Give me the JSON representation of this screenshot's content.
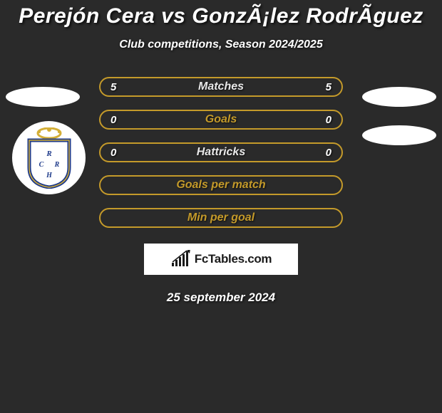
{
  "title": "Perejón Cera vs GonzÃ¡lez RodrÃ­guez",
  "subtitle": "Club competitions, Season 2024/2025",
  "date": "25 september 2024",
  "logo_text": "FcTables.com",
  "colors": {
    "accent": "#c49a2a",
    "background": "#2a2a2a",
    "crest_blue": "#1e3a8a",
    "crest_gold": "#d4af37"
  },
  "rows": [
    {
      "label": "Matches",
      "left": "5",
      "right": "5",
      "border": "#c49a2a",
      "label_color": "#e8e8e8"
    },
    {
      "label": "Goals",
      "left": "0",
      "right": "0",
      "border": "#c49a2a",
      "label_color": "#c49a2a"
    },
    {
      "label": "Hattricks",
      "left": "0",
      "right": "0",
      "border": "#c49a2a",
      "label_color": "#e8e8e8"
    },
    {
      "label": "Goals per match",
      "left": "",
      "right": "",
      "border": "#c49a2a",
      "label_color": "#c49a2a"
    },
    {
      "label": "Min per goal",
      "left": "",
      "right": "",
      "border": "#c49a2a",
      "label_color": "#c49a2a"
    }
  ]
}
